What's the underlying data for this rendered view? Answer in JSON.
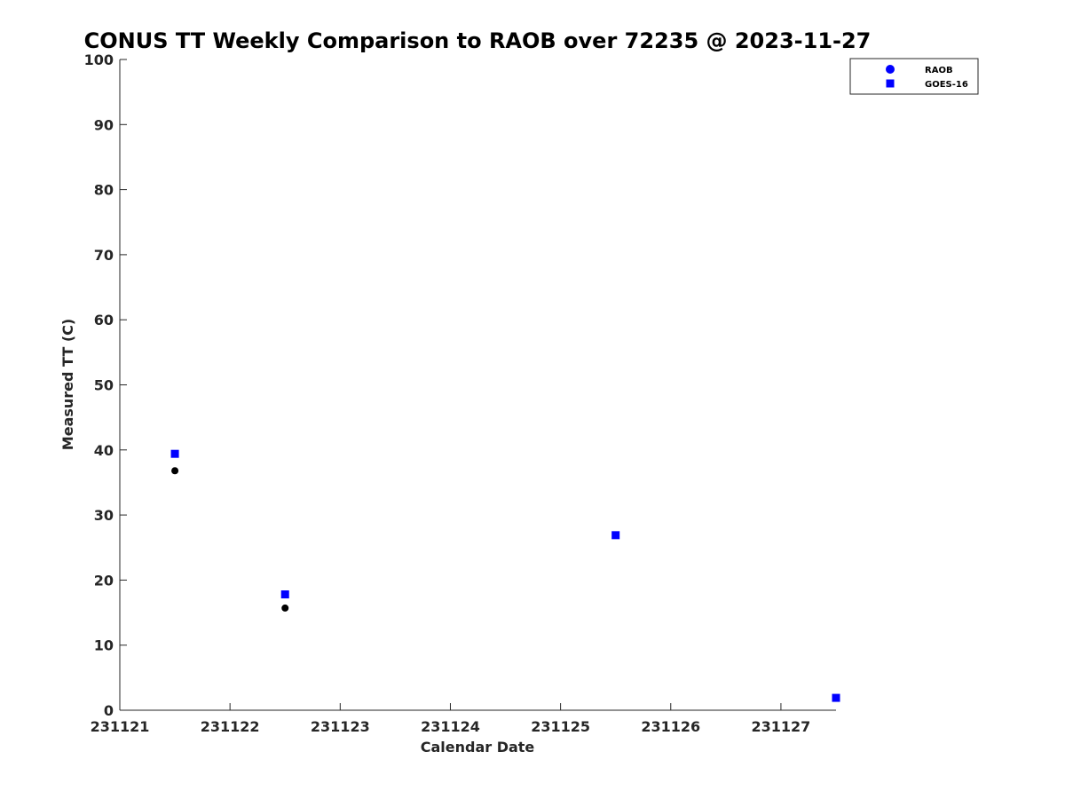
{
  "chart_data": {
    "type": "scatter",
    "title": "CONUS TT Weekly Comparison to RAOB over 72235 @ 2023-11-27",
    "xlabel": "Calendar Date",
    "ylabel": "Measured TT (C)",
    "xlim": [
      0,
      6.5
    ],
    "ylim": [
      0,
      100
    ],
    "x_ticks": [
      0,
      1,
      2,
      3,
      4,
      5,
      6
    ],
    "x_tick_labels": [
      "231121",
      "231122",
      "231123",
      "231124",
      "231125",
      "231126",
      "231127"
    ],
    "y_ticks": [
      0,
      10,
      20,
      30,
      40,
      50,
      60,
      70,
      80,
      90,
      100
    ],
    "y_tick_labels": [
      "0",
      "10",
      "20",
      "30",
      "40",
      "50",
      "60",
      "70",
      "80",
      "90",
      "100"
    ],
    "grid": false,
    "legend_position": "top-right",
    "series": [
      {
        "name": "RAOB",
        "marker": "circle",
        "color": "#000000",
        "legend_color": "#0000ff",
        "x": [
          0.5,
          1.5
        ],
        "y": [
          36.8,
          15.7
        ]
      },
      {
        "name": "GOES-16",
        "marker": "square",
        "color": "#0000ff",
        "legend_color": "#0000ff",
        "x": [
          0.5,
          1.5,
          4.5,
          6.5
        ],
        "y": [
          39.4,
          17.8,
          26.9,
          1.9
        ]
      }
    ]
  }
}
